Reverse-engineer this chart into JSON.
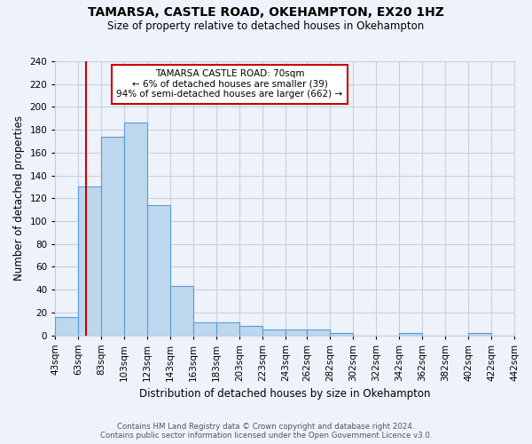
{
  "title": "TAMARSA, CASTLE ROAD, OKEHAMPTON, EX20 1HZ",
  "subtitle": "Size of property relative to detached houses in Okehampton",
  "xlabel": "Distribution of detached houses by size in Okehampton",
  "ylabel": "Number of detached properties",
  "bar_values": [
    16,
    130,
    174,
    186,
    114,
    43,
    11,
    11,
    8,
    5,
    5,
    5,
    2,
    0,
    0,
    2,
    0,
    0,
    2,
    0
  ],
  "bin_edges": [
    43,
    63,
    83,
    103,
    123,
    143,
    163,
    183,
    203,
    223,
    243,
    262,
    282,
    302,
    322,
    342,
    362,
    382,
    402,
    422,
    442
  ],
  "xtick_labels": [
    "43sqm",
    "63sqm",
    "83sqm",
    "103sqm",
    "123sqm",
    "143sqm",
    "163sqm",
    "183sqm",
    "203sqm",
    "223sqm",
    "243sqm",
    "262sqm",
    "282sqm",
    "302sqm",
    "322sqm",
    "342sqm",
    "362sqm",
    "382sqm",
    "402sqm",
    "422sqm",
    "442sqm"
  ],
  "bar_color": "#bdd7ee",
  "bar_edge_color": "#5b9bd5",
  "vline_x": 70,
  "vline_color": "#cc0000",
  "ylim": [
    0,
    240
  ],
  "yticks": [
    0,
    20,
    40,
    60,
    80,
    100,
    120,
    140,
    160,
    180,
    200,
    220,
    240
  ],
  "annotation_title": "TAMARSA CASTLE ROAD: 70sqm",
  "annotation_line1": "← 6% of detached houses are smaller (39)",
  "annotation_line2": "94% of semi-detached houses are larger (662) →",
  "footer_line1": "Contains HM Land Registry data © Crown copyright and database right 2024.",
  "footer_line2": "Contains public sector information licensed under the Open Government Licence v3.0.",
  "bg_color": "#eef2fa",
  "grid_color": "#c8d0e0"
}
